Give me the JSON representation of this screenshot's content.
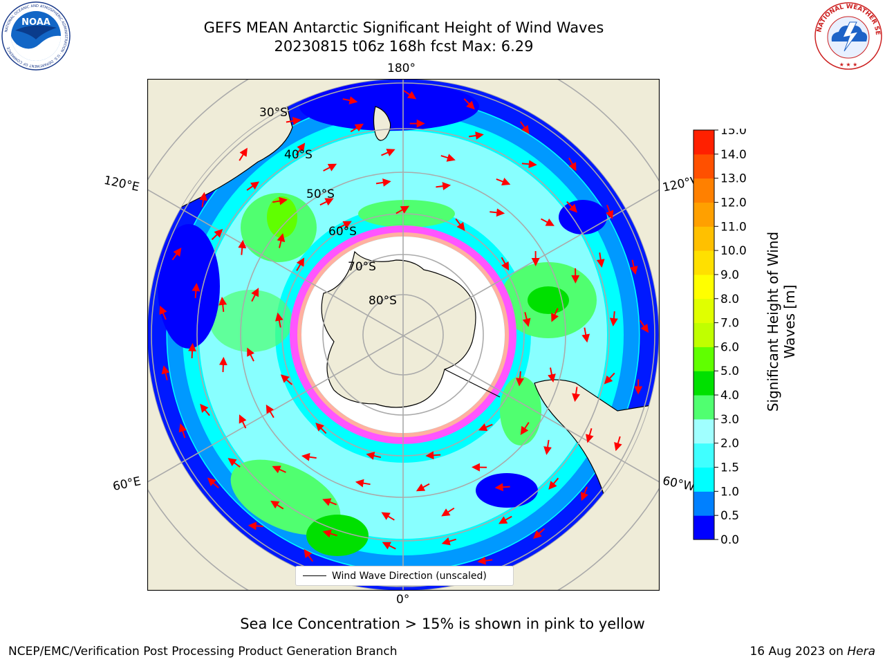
{
  "header": {
    "title_line1": "GEFS MEAN Antarctic Significant Height of Wind Waves",
    "title_line2": "20230815 t06z 168h fcst   Max: 6.29"
  },
  "logos": {
    "left": "noaa-logo",
    "left_text": "NATIONAL OCEANIC AND ATMOSPHERIC ADMINISTRATION · U.S. DEPARTMENT OF COMMERCE",
    "left_center": "NOAA",
    "right": "nws-logo",
    "right_text": "NATIONAL WEATHER SERVICE"
  },
  "map": {
    "projection": "south-polar-stereographic",
    "lon_labels": {
      "top": "180°",
      "bottom": "0°",
      "upper_left": "120°E",
      "upper_right": "120°W",
      "lower_left": "60°E",
      "lower_right": "60°W"
    },
    "lat_labels": [
      "30°S",
      "40°S",
      "50°S",
      "60°S",
      "70°S",
      "80°S"
    ],
    "legend_label": "Wind Wave Direction (unscaled)",
    "colors": {
      "land": "#efecd8",
      "ocean_low": "#0000ff",
      "ocean_mid": "#00ffff",
      "ocean_high": "#00e000",
      "arrows": "#ff0000",
      "sea_ice_low": "#ff55ff",
      "sea_ice_high": "#ffff55",
      "ice_shelf": "#ffffff",
      "grid": "#aaaaaa"
    }
  },
  "colorbar": {
    "label": "Significant Height of Wind Waves [m]",
    "label_line1": "Significant Height of Wind",
    "label_line2": "Waves [m]",
    "ticks": [
      "0.0",
      "0.5",
      "1.0",
      "1.5",
      "2.0",
      "3.0",
      "4.0",
      "5.0",
      "6.0",
      "7.0",
      "8.0",
      "9.0",
      "10.0",
      "11.0",
      "12.0",
      "13.0",
      "14.0",
      "15.0"
    ],
    "colors": [
      "#0000ff",
      "#0080ff",
      "#00ffff",
      "#40ffff",
      "#a0ffff",
      "#50ff70",
      "#00e000",
      "#60ff00",
      "#c0ff00",
      "#e0ff00",
      "#ffff00",
      "#ffe000",
      "#ffc000",
      "#ffa000",
      "#ff8000",
      "#ff5000",
      "#ff2000"
    ]
  },
  "footer": {
    "note": "Sea Ice Concentration > 15% is shown in pink to yellow",
    "credit": "NCEP/EMC/Verification Post Processing Product Generation Branch",
    "date_prefix": "16 Aug 2023 on ",
    "host": "Hera"
  }
}
